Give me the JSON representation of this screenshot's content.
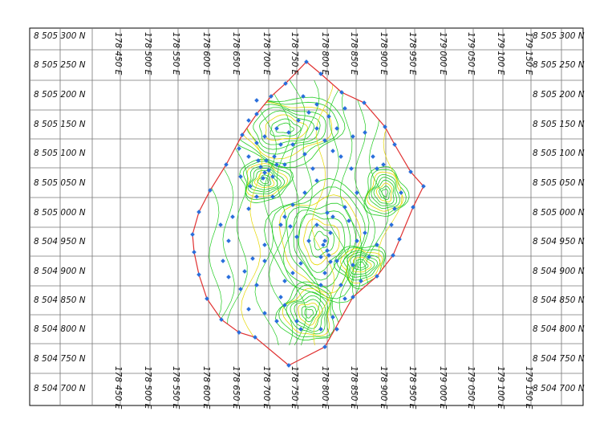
{
  "map": {
    "northing_labels": [
      "8 505 300 N",
      "8 505 250 N",
      "8 505 200 N",
      "8 505 150 N",
      "8 505 100 N",
      "8 505 050 N",
      "8 505 000 N",
      "8 504 950 N",
      "8 504 900 N",
      "8 504 850 N",
      "8 504 800 N",
      "8 504 750 N",
      "8 504 700 N"
    ],
    "easting_labels": [
      "178 450 E",
      "178 500 E",
      "178 550 E",
      "178 600 E",
      "178 650 E",
      "178 700 E",
      "178 750 E",
      "178 800 E",
      "178 850 E",
      "178 900 E",
      "178 950 E",
      "179 000 E",
      "179 050 E",
      "179 100 E",
      "179 150 E"
    ],
    "boundary_color": "#e03030",
    "contour_colors": [
      "#22cc22",
      "#e6d800"
    ],
    "survey_point_color": "#2a6fdc"
  }
}
